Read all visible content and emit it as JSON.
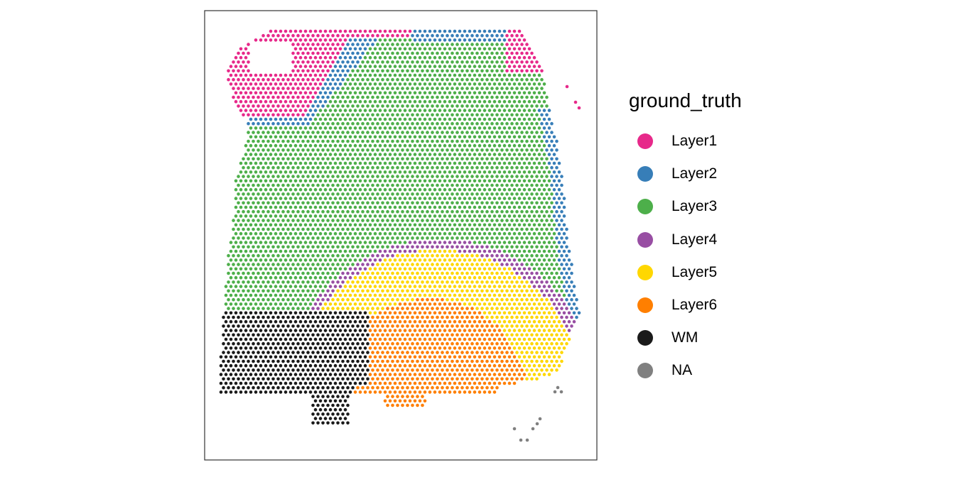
{
  "chart_data": {
    "type": "scatter",
    "title": "",
    "xlabel": "",
    "ylabel": "",
    "grid": false,
    "legend_placement": "right",
    "legend": {
      "title": "ground_truth",
      "entries": [
        {
          "label": "Layer1",
          "color": "#E7298A"
        },
        {
          "label": "Layer2",
          "color": "#377EB8"
        },
        {
          "label": "Layer3",
          "color": "#4DAF4A"
        },
        {
          "label": "Layer4",
          "color": "#984EA3"
        },
        {
          "label": "Layer5",
          "color": "#FFD700"
        },
        {
          "label": "Layer6",
          "color": "#FF7F00"
        },
        {
          "label": "WM",
          "color": "#1A1A1A"
        },
        {
          "label": "NA",
          "color": "#808080"
        }
      ]
    }
  }
}
